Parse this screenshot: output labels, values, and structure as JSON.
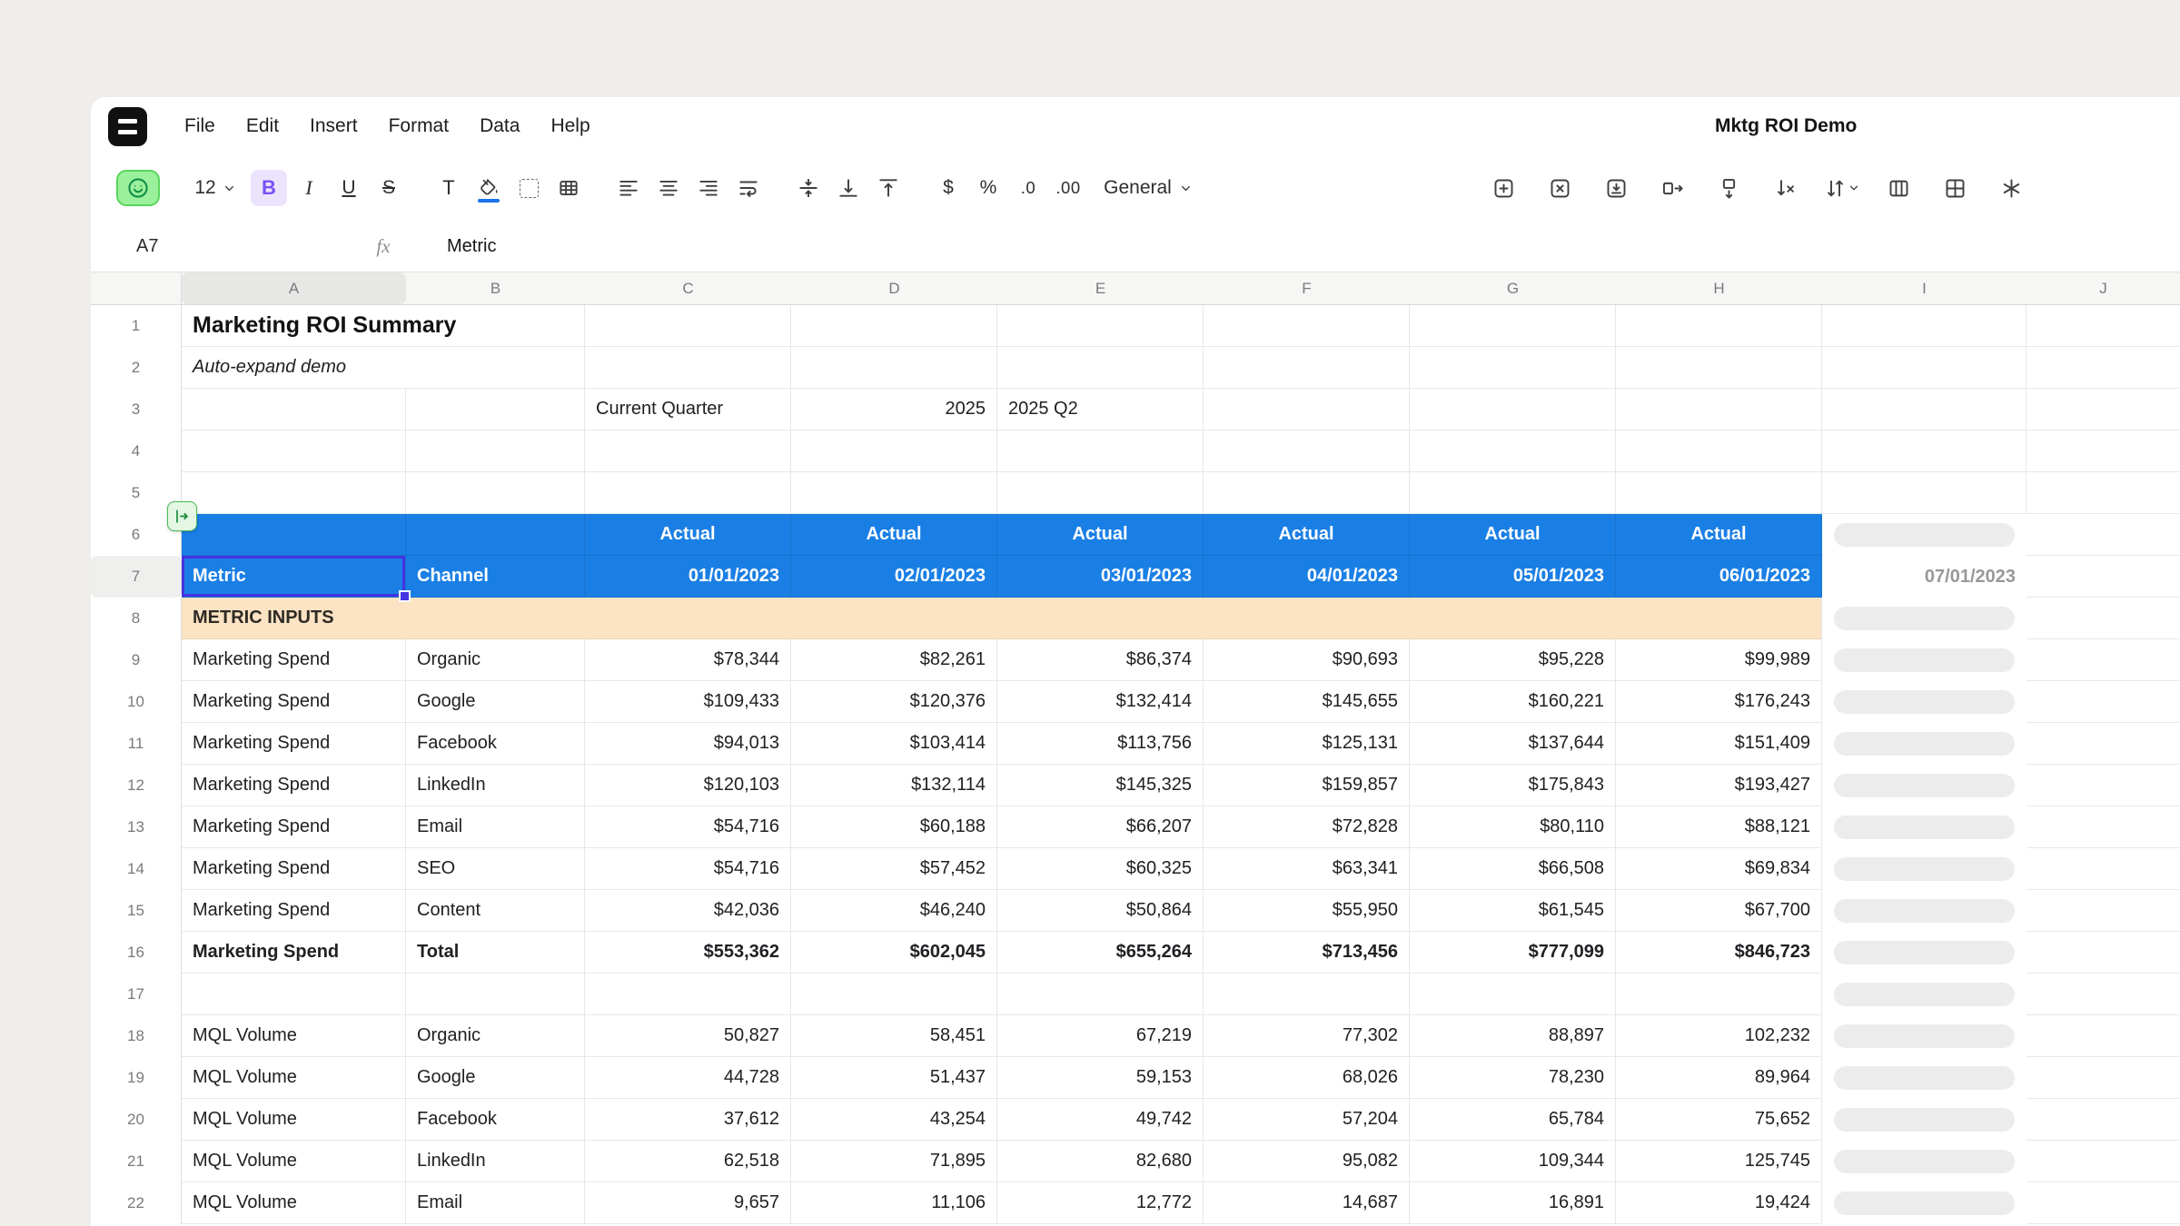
{
  "app": {
    "title": "Mktg ROI Demo",
    "menus": [
      "File",
      "Edit",
      "Insert",
      "Format",
      "Data",
      "Help"
    ]
  },
  "toolbar": {
    "font_size": "12",
    "bold_label": "B",
    "italic_label": "I",
    "underline_label": "U",
    "strikethrough_label": "S",
    "text_color_label": "T",
    "currency_label": "$",
    "percent_label": "%",
    "decimal_decrease_label": ".0",
    "decimal_increase_label": ".00",
    "number_format_value": "General"
  },
  "formula_bar": {
    "cell_ref": "A7",
    "fx_label": "fx",
    "value": "Metric"
  },
  "colors": {
    "header_blue": "#1a7fe5",
    "section_peach": "#fbe3c3",
    "selection_indigo": "#4433e0",
    "ghost_gray": "#ececec",
    "fill_swatch_blue": "#1a73e8",
    "bold_active_purple": "#7a52f5",
    "logo_black": "#111111",
    "smiley_green": "#9bf09b"
  },
  "grid": {
    "columns": [
      "A",
      "B",
      "C",
      "D",
      "E",
      "F",
      "G",
      "H",
      "I",
      "J"
    ],
    "selected_column": "A",
    "selected_row": "7",
    "rows": [
      {
        "n": "1",
        "type": "title",
        "a": "Marketing ROI Summary"
      },
      {
        "n": "2",
        "type": "subtitle",
        "a": "Auto-expand demo"
      },
      {
        "n": "3",
        "type": "info",
        "c": "Current Quarter",
        "d": "2025",
        "e": "2025 Q2"
      },
      {
        "n": "4",
        "type": "empty",
        "ghost": false
      },
      {
        "n": "5",
        "type": "empty",
        "ghost": false
      },
      {
        "n": "6",
        "type": "actual",
        "label": "Actual",
        "ghost": true
      },
      {
        "n": "7",
        "type": "dates",
        "a": "Metric",
        "b": "Channel",
        "vals": [
          "01/01/2023",
          "02/01/2023",
          "03/01/2023",
          "04/01/2023",
          "05/01/2023",
          "06/01/2023"
        ],
        "ghost_text": "07/01/2023"
      },
      {
        "n": "8",
        "type": "section",
        "a": "METRIC INPUTS",
        "ghost": true
      },
      {
        "n": "9",
        "type": "data",
        "a": "Marketing Spend",
        "b": "Organic",
        "vals": [
          "$78,344",
          "$82,261",
          "$86,374",
          "$90,693",
          "$95,228",
          "$99,989"
        ],
        "ghost": true
      },
      {
        "n": "10",
        "type": "data",
        "a": "Marketing Spend",
        "b": "Google",
        "vals": [
          "$109,433",
          "$120,376",
          "$132,414",
          "$145,655",
          "$160,221",
          "$176,243"
        ],
        "ghost": true
      },
      {
        "n": "11",
        "type": "data",
        "a": "Marketing Spend",
        "b": "Facebook",
        "vals": [
          "$94,013",
          "$103,414",
          "$113,756",
          "$125,131",
          "$137,644",
          "$151,409"
        ],
        "ghost": true
      },
      {
        "n": "12",
        "type": "data",
        "a": "Marketing Spend",
        "b": "LinkedIn",
        "vals": [
          "$120,103",
          "$132,114",
          "$145,325",
          "$159,857",
          "$175,843",
          "$193,427"
        ],
        "ghost": true
      },
      {
        "n": "13",
        "type": "data",
        "a": "Marketing Spend",
        "b": "Email",
        "vals": [
          "$54,716",
          "$60,188",
          "$66,207",
          "$72,828",
          "$80,110",
          "$88,121"
        ],
        "ghost": true
      },
      {
        "n": "14",
        "type": "data",
        "a": "Marketing Spend",
        "b": "SEO",
        "vals": [
          "$54,716",
          "$57,452",
          "$60,325",
          "$63,341",
          "$66,508",
          "$69,834"
        ],
        "ghost": true
      },
      {
        "n": "15",
        "type": "data",
        "a": "Marketing Spend",
        "b": "Content",
        "vals": [
          "$42,036",
          "$46,240",
          "$50,864",
          "$55,950",
          "$61,545",
          "$67,700"
        ],
        "ghost": true
      },
      {
        "n": "16",
        "type": "total",
        "a": "Marketing Spend",
        "b": "Total",
        "vals": [
          "$553,362",
          "$602,045",
          "$655,264",
          "$713,456",
          "$777,099",
          "$846,723"
        ],
        "ghost": true
      },
      {
        "n": "17",
        "type": "empty",
        "ghost": true
      },
      {
        "n": "18",
        "type": "data",
        "a": "MQL Volume",
        "b": "Organic",
        "vals": [
          "50,827",
          "58,451",
          "67,219",
          "77,302",
          "88,897",
          "102,232"
        ],
        "ghost": true
      },
      {
        "n": "19",
        "type": "data",
        "a": "MQL Volume",
        "b": "Google",
        "vals": [
          "44,728",
          "51,437",
          "59,153",
          "68,026",
          "78,230",
          "89,964"
        ],
        "ghost": true
      },
      {
        "n": "20",
        "type": "data",
        "a": "MQL Volume",
        "b": "Facebook",
        "vals": [
          "37,612",
          "43,254",
          "49,742",
          "57,204",
          "65,784",
          "75,652"
        ],
        "ghost": true
      },
      {
        "n": "21",
        "type": "data",
        "a": "MQL Volume",
        "b": "LinkedIn",
        "vals": [
          "62,518",
          "71,895",
          "82,680",
          "95,082",
          "109,344",
          "125,745"
        ],
        "ghost": true
      },
      {
        "n": "22",
        "type": "data",
        "a": "MQL Volume",
        "b": "Email",
        "vals": [
          "9,657",
          "11,106",
          "12,772",
          "14,687",
          "16,891",
          "19,424"
        ],
        "ghost": true
      }
    ]
  }
}
